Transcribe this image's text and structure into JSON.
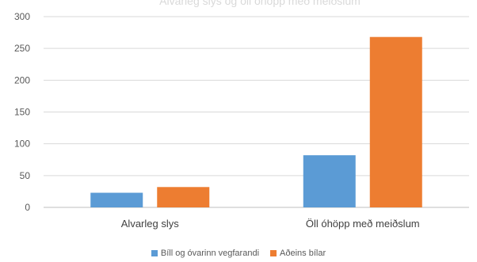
{
  "chart_data": {
    "type": "bar",
    "title": "Alvarleg slys og öll óhöpp með meiðslum",
    "categories": [
      "Alvarleg slys",
      "Öll óhöpp með meiðslum"
    ],
    "series": [
      {
        "name": "Bíll og óvarinn vegfarandi",
        "color": "#5b9bd5",
        "values": [
          23,
          82
        ]
      },
      {
        "name": "Aðeins bílar",
        "color": "#ed7d31",
        "values": [
          32,
          268
        ]
      }
    ],
    "ylim": [
      0,
      300
    ],
    "yticks": [
      0,
      50,
      100,
      150,
      200,
      250,
      300
    ],
    "grid": true,
    "legend_position": "bottom"
  }
}
